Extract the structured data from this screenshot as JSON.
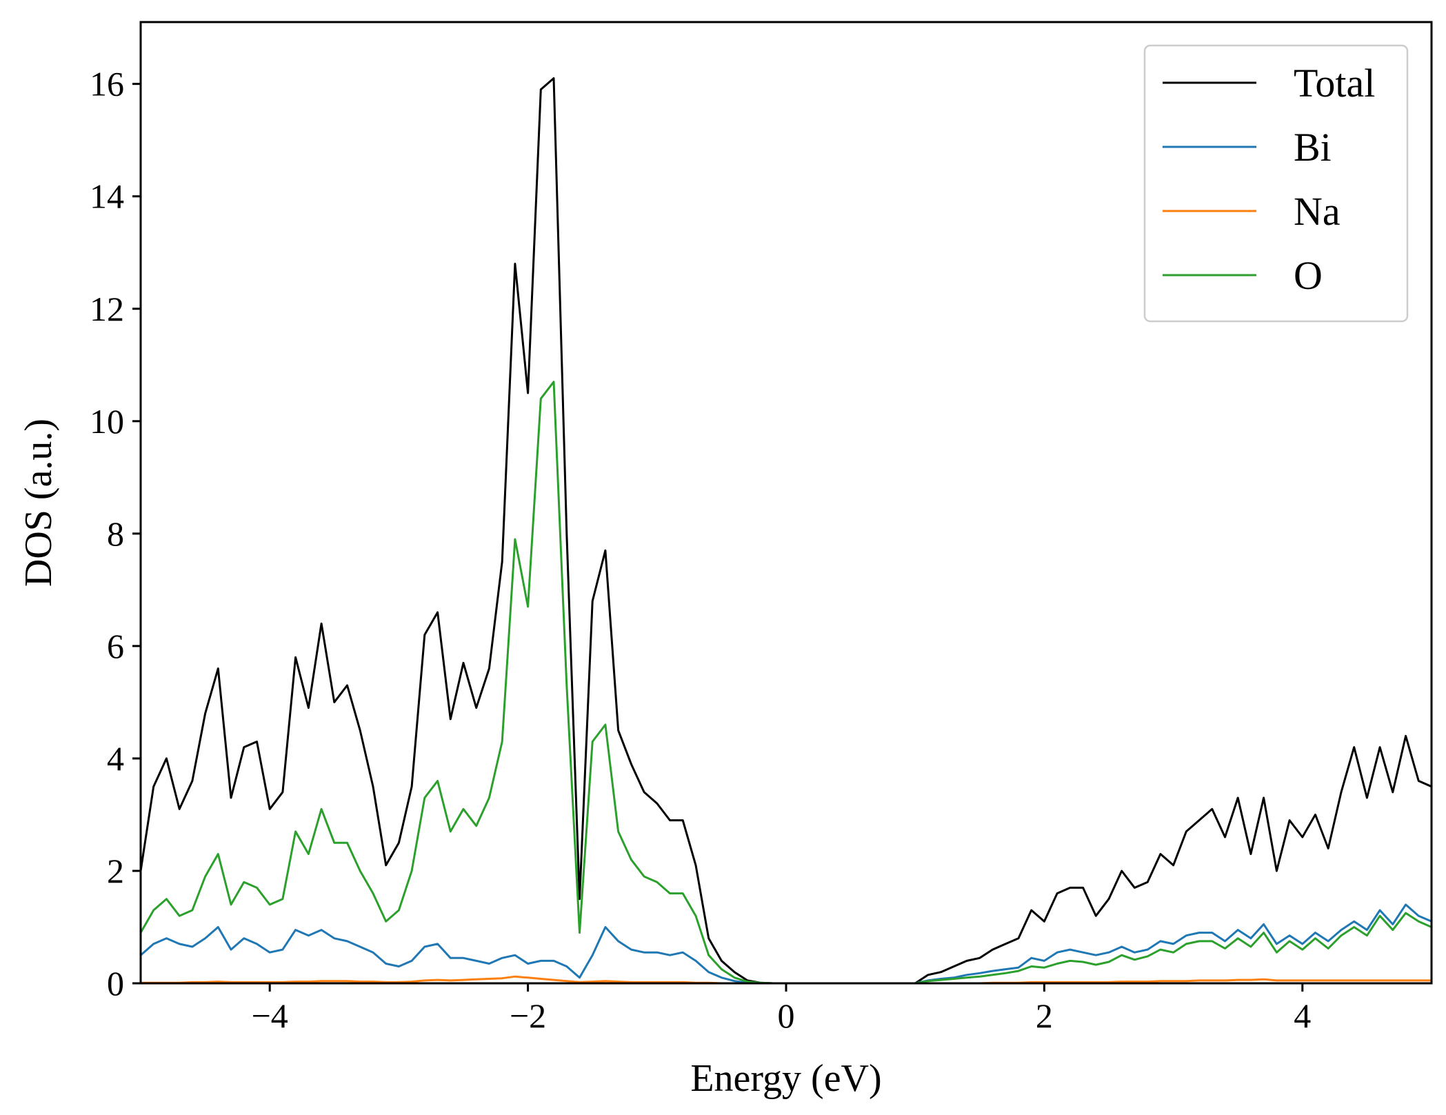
{
  "chart_data": {
    "type": "line",
    "title": "",
    "xlabel": "Energy (eV)",
    "ylabel": "DOS (a.u.)",
    "xlim": [
      -5,
      5
    ],
    "ylim": [
      0,
      17.1
    ],
    "xticks": [
      -4,
      -2,
      0,
      2,
      4
    ],
    "xtick_labels": [
      "−4",
      "−2",
      "0",
      "2",
      "4"
    ],
    "yticks": [
      0,
      2,
      4,
      6,
      8,
      10,
      12,
      14,
      16
    ],
    "ytick_labels": [
      "0",
      "2",
      "4",
      "6",
      "8",
      "10",
      "12",
      "14",
      "16"
    ],
    "grid": false,
    "legend_position": "top-right",
    "x": [
      -5.0,
      -4.9,
      -4.8,
      -4.7,
      -4.6,
      -4.5,
      -4.4,
      -4.3,
      -4.2,
      -4.1,
      -4.0,
      -3.9,
      -3.8,
      -3.7,
      -3.6,
      -3.5,
      -3.4,
      -3.3,
      -3.2,
      -3.1,
      -3.0,
      -2.9,
      -2.8,
      -2.7,
      -2.6,
      -2.5,
      -2.4,
      -2.3,
      -2.2,
      -2.1,
      -2.0,
      -1.9,
      -1.8,
      -1.7,
      -1.6,
      -1.5,
      -1.4,
      -1.3,
      -1.2,
      -1.1,
      -1.0,
      -0.9,
      -0.8,
      -0.7,
      -0.6,
      -0.5,
      -0.4,
      -0.3,
      -0.2,
      -0.1,
      0.0,
      0.1,
      0.2,
      0.3,
      0.4,
      0.5,
      0.6,
      0.7,
      0.8,
      0.9,
      1.0,
      1.1,
      1.2,
      1.3,
      1.4,
      1.5,
      1.6,
      1.7,
      1.8,
      1.9,
      2.0,
      2.1,
      2.2,
      2.3,
      2.4,
      2.5,
      2.6,
      2.7,
      2.8,
      2.9,
      3.0,
      3.1,
      3.2,
      3.3,
      3.4,
      3.5,
      3.6,
      3.7,
      3.8,
      3.9,
      4.0,
      4.1,
      4.2,
      4.3,
      4.4,
      4.5,
      4.6,
      4.7,
      4.8,
      4.9,
      5.0
    ],
    "series": [
      {
        "name": "Total",
        "color": "#000000",
        "values": [
          2.0,
          3.5,
          4.0,
          3.1,
          3.6,
          4.8,
          5.6,
          3.3,
          4.2,
          4.3,
          3.1,
          3.4,
          5.8,
          4.9,
          6.4,
          5.0,
          5.3,
          4.5,
          3.5,
          2.1,
          2.5,
          3.5,
          6.2,
          6.6,
          4.7,
          5.7,
          4.9,
          5.6,
          7.5,
          12.8,
          10.5,
          15.9,
          16.1,
          8.0,
          1.5,
          6.8,
          7.7,
          4.5,
          3.9,
          3.4,
          3.2,
          2.9,
          2.9,
          2.1,
          0.8,
          0.4,
          0.2,
          0.05,
          0.01,
          0.0,
          0.0,
          0.0,
          0.0,
          0.0,
          0.0,
          0.0,
          0.0,
          0.0,
          0.0,
          0.0,
          0.0,
          0.15,
          0.2,
          0.3,
          0.4,
          0.45,
          0.6,
          0.7,
          0.8,
          1.3,
          1.1,
          1.6,
          1.7,
          1.7,
          1.2,
          1.5,
          2.0,
          1.7,
          1.8,
          2.3,
          2.1,
          2.7,
          2.9,
          3.1,
          2.6,
          3.3,
          2.3,
          3.3,
          2.0,
          2.9,
          2.6,
          3.0,
          2.4,
          3.4,
          4.2,
          3.3,
          4.2,
          3.4,
          4.4,
          3.6,
          3.5
        ]
      },
      {
        "name": "Bi",
        "color": "#1f77b4",
        "values": [
          0.5,
          0.7,
          0.8,
          0.7,
          0.65,
          0.8,
          1.0,
          0.6,
          0.8,
          0.7,
          0.55,
          0.6,
          0.95,
          0.85,
          0.95,
          0.8,
          0.75,
          0.65,
          0.55,
          0.35,
          0.3,
          0.4,
          0.65,
          0.7,
          0.45,
          0.45,
          0.4,
          0.35,
          0.45,
          0.5,
          0.35,
          0.4,
          0.4,
          0.3,
          0.1,
          0.5,
          1.0,
          0.75,
          0.6,
          0.55,
          0.55,
          0.5,
          0.55,
          0.4,
          0.2,
          0.1,
          0.04,
          0.01,
          0.0,
          0.0,
          0.0,
          0.0,
          0.0,
          0.0,
          0.0,
          0.0,
          0.0,
          0.0,
          0.0,
          0.0,
          0.0,
          0.05,
          0.08,
          0.1,
          0.15,
          0.18,
          0.22,
          0.25,
          0.28,
          0.45,
          0.4,
          0.55,
          0.6,
          0.55,
          0.5,
          0.55,
          0.65,
          0.55,
          0.6,
          0.75,
          0.7,
          0.85,
          0.9,
          0.9,
          0.75,
          0.95,
          0.8,
          1.05,
          0.7,
          0.85,
          0.7,
          0.9,
          0.75,
          0.95,
          1.1,
          0.95,
          1.3,
          1.05,
          1.4,
          1.2,
          1.1
        ]
      },
      {
        "name": "Na",
        "color": "#ff7f0e",
        "values": [
          0.01,
          0.01,
          0.01,
          0.01,
          0.02,
          0.02,
          0.03,
          0.02,
          0.02,
          0.02,
          0.02,
          0.02,
          0.03,
          0.03,
          0.04,
          0.04,
          0.04,
          0.03,
          0.03,
          0.02,
          0.02,
          0.03,
          0.05,
          0.06,
          0.05,
          0.06,
          0.07,
          0.08,
          0.09,
          0.12,
          0.1,
          0.08,
          0.06,
          0.04,
          0.02,
          0.03,
          0.04,
          0.03,
          0.02,
          0.02,
          0.02,
          0.02,
          0.02,
          0.01,
          0.01,
          0.0,
          0.0,
          0.0,
          0.0,
          0.0,
          0.0,
          0.0,
          0.0,
          0.0,
          0.0,
          0.0,
          0.0,
          0.0,
          0.0,
          0.0,
          0.0,
          0.0,
          0.0,
          0.0,
          0.0,
          0.0,
          0.01,
          0.01,
          0.01,
          0.02,
          0.02,
          0.02,
          0.02,
          0.02,
          0.02,
          0.02,
          0.03,
          0.03,
          0.03,
          0.04,
          0.04,
          0.04,
          0.05,
          0.05,
          0.05,
          0.06,
          0.06,
          0.07,
          0.05,
          0.05,
          0.05,
          0.05,
          0.05,
          0.05,
          0.05,
          0.05,
          0.05,
          0.05,
          0.05,
          0.05,
          0.05
        ]
      },
      {
        "name": "O",
        "color": "#2ca02c",
        "values": [
          0.9,
          1.3,
          1.5,
          1.2,
          1.3,
          1.9,
          2.3,
          1.4,
          1.8,
          1.7,
          1.4,
          1.5,
          2.7,
          2.3,
          3.1,
          2.5,
          2.5,
          2.0,
          1.6,
          1.1,
          1.3,
          2.0,
          3.3,
          3.6,
          2.7,
          3.1,
          2.8,
          3.3,
          4.3,
          7.9,
          6.7,
          10.4,
          10.7,
          5.3,
          0.9,
          4.3,
          4.6,
          2.7,
          2.2,
          1.9,
          1.8,
          1.6,
          1.6,
          1.2,
          0.5,
          0.25,
          0.1,
          0.03,
          0.01,
          0.0,
          0.0,
          0.0,
          0.0,
          0.0,
          0.0,
          0.0,
          0.0,
          0.0,
          0.0,
          0.0,
          0.0,
          0.04,
          0.06,
          0.08,
          0.1,
          0.12,
          0.15,
          0.18,
          0.22,
          0.3,
          0.28,
          0.35,
          0.4,
          0.38,
          0.33,
          0.38,
          0.5,
          0.42,
          0.48,
          0.6,
          0.55,
          0.7,
          0.75,
          0.75,
          0.62,
          0.8,
          0.65,
          0.9,
          0.55,
          0.75,
          0.6,
          0.8,
          0.62,
          0.85,
          1.0,
          0.85,
          1.2,
          0.95,
          1.25,
          1.1,
          1.0
        ]
      }
    ]
  }
}
